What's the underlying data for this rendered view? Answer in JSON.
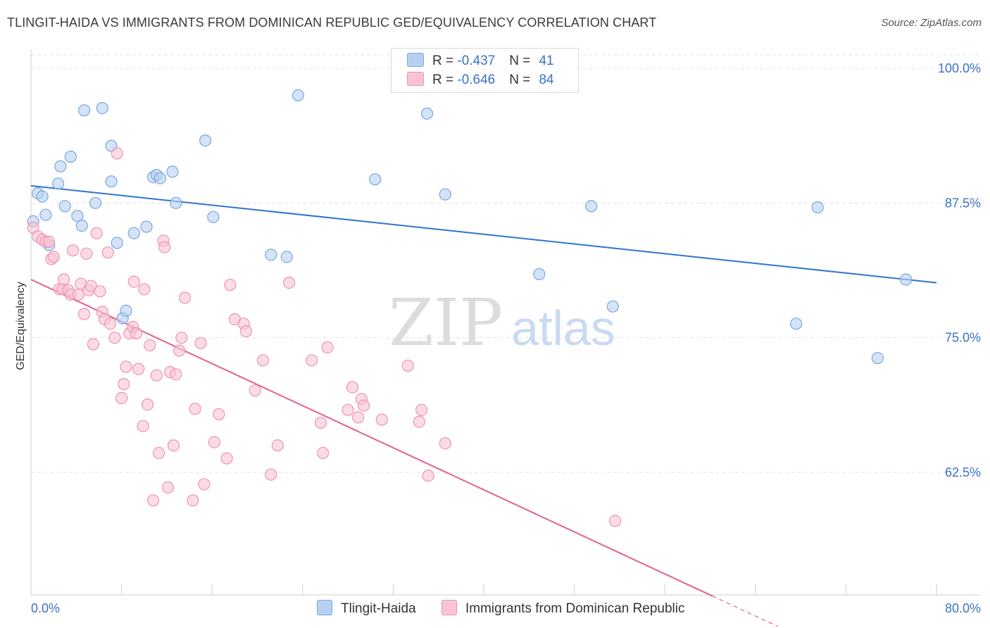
{
  "title": "TLINGIT-HAIDA VS IMMIGRANTS FROM DOMINICAN REPUBLIC GED/EQUIVALENCY CORRELATION CHART",
  "source": "Source: ZipAtlas.com",
  "watermark": {
    "zip": "ZIP",
    "atlas": "atlas"
  },
  "legend": {
    "rows": [
      {
        "r_label": "R = ",
        "r_value": "-0.437",
        "n_label": "N = ",
        "n_value": "41"
      },
      {
        "r_label": "R = ",
        "r_value": "-0.646",
        "n_label": "N = ",
        "n_value": "84"
      }
    ]
  },
  "colors": {
    "blue_fill": "#b7d0f2",
    "blue_stroke": "#7aa6de",
    "blue_line": "#2f74d0",
    "pink_fill": "#f8c4d4",
    "pink_stroke": "#ee93b0",
    "pink_line": "#e0618f",
    "axis_text": "#3b72c8",
    "grid": "#e3e3e3"
  },
  "chart_data": {
    "type": "scatter",
    "xlabel": "",
    "ylabel": "GED/Equivalency",
    "xlim": [
      0,
      80
    ],
    "ylim": [
      50,
      102
    ],
    "x_tick_labels": [
      "0.0%",
      "80.0%"
    ],
    "y_ticks": [
      62.5,
      75.0,
      87.5,
      100.0
    ],
    "y_tick_labels": [
      "62.5%",
      "75.0%",
      "87.5%",
      "100.0%"
    ],
    "grid": true,
    "legend_position": "top-center",
    "series": [
      {
        "name": "Tlingit-Haida",
        "color": "#b7d0f2",
        "R": -0.437,
        "N": 41,
        "trend": {
          "x": [
            0,
            80
          ],
          "y": [
            89.1,
            80.1
          ]
        },
        "points": [
          [
            0.2,
            85.8
          ],
          [
            0.6,
            88.4
          ],
          [
            1.0,
            88.1
          ],
          [
            1.3,
            86.4
          ],
          [
            1.6,
            83.6
          ],
          [
            2.4,
            89.3
          ],
          [
            2.6,
            90.9
          ],
          [
            3.0,
            87.2
          ],
          [
            3.5,
            91.8
          ],
          [
            4.1,
            86.3
          ],
          [
            4.5,
            85.4
          ],
          [
            4.7,
            96.1
          ],
          [
            5.7,
            87.5
          ],
          [
            6.3,
            96.3
          ],
          [
            7.1,
            92.8
          ],
          [
            7.1,
            89.5
          ],
          [
            7.6,
            83.8
          ],
          [
            8.1,
            76.8
          ],
          [
            8.4,
            77.5
          ],
          [
            9.1,
            84.7
          ],
          [
            10.2,
            85.3
          ],
          [
            10.8,
            89.9
          ],
          [
            11.1,
            90.1
          ],
          [
            11.4,
            89.8
          ],
          [
            12.5,
            90.4
          ],
          [
            12.8,
            87.5
          ],
          [
            15.4,
            93.3
          ],
          [
            16.1,
            86.2
          ],
          [
            21.2,
            82.7
          ],
          [
            22.6,
            82.5
          ],
          [
            23.6,
            97.5
          ],
          [
            30.4,
            89.7
          ],
          [
            35.0,
            95.8
          ],
          [
            36.6,
            88.3
          ],
          [
            44.9,
            80.9
          ],
          [
            49.5,
            87.2
          ],
          [
            51.4,
            77.9
          ],
          [
            67.6,
            76.3
          ],
          [
            69.5,
            87.1
          ],
          [
            74.8,
            73.1
          ],
          [
            77.3,
            80.4
          ]
        ]
      },
      {
        "name": "Immigrants from Dominican Republic",
        "color": "#f8c4d4",
        "R": -0.646,
        "N": 84,
        "trend": {
          "x": [
            0,
            66
          ],
          "y": [
            80.4,
            48.2
          ]
        },
        "points": [
          [
            0.2,
            85.2
          ],
          [
            0.6,
            84.4
          ],
          [
            1.0,
            84.1
          ],
          [
            1.3,
            83.9
          ],
          [
            1.8,
            82.3
          ],
          [
            2.0,
            82.5
          ],
          [
            2.5,
            79.5
          ],
          [
            2.8,
            79.5
          ],
          [
            2.9,
            80.4
          ],
          [
            3.3,
            79.4
          ],
          [
            3.5,
            79.0
          ],
          [
            3.7,
            83.1
          ],
          [
            4.2,
            79.0
          ],
          [
            4.4,
            80.0
          ],
          [
            4.7,
            77.2
          ],
          [
            4.9,
            82.8
          ],
          [
            5.1,
            79.4
          ],
          [
            5.3,
            79.8
          ],
          [
            5.5,
            74.4
          ],
          [
            5.8,
            84.7
          ],
          [
            6.1,
            79.3
          ],
          [
            6.3,
            77.4
          ],
          [
            6.5,
            76.7
          ],
          [
            6.8,
            82.9
          ],
          [
            7.0,
            76.3
          ],
          [
            7.4,
            75.0
          ],
          [
            7.6,
            92.1
          ],
          [
            8.0,
            69.4
          ],
          [
            8.2,
            70.7
          ],
          [
            8.4,
            72.3
          ],
          [
            8.7,
            75.4
          ],
          [
            9.0,
            76.0
          ],
          [
            9.1,
            80.2
          ],
          [
            9.3,
            75.4
          ],
          [
            9.5,
            72.1
          ],
          [
            9.9,
            66.8
          ],
          [
            10.0,
            79.5
          ],
          [
            10.3,
            68.8
          ],
          [
            10.5,
            74.3
          ],
          [
            10.8,
            59.9
          ],
          [
            11.1,
            71.5
          ],
          [
            11.3,
            64.3
          ],
          [
            11.7,
            84.0
          ],
          [
            11.8,
            83.4
          ],
          [
            12.1,
            61.1
          ],
          [
            12.3,
            71.8
          ],
          [
            12.6,
            65.0
          ],
          [
            12.8,
            71.6
          ],
          [
            13.1,
            73.8
          ],
          [
            13.3,
            75.0
          ],
          [
            13.6,
            78.7
          ],
          [
            14.3,
            59.9
          ],
          [
            14.5,
            68.4
          ],
          [
            15.0,
            74.5
          ],
          [
            15.3,
            61.4
          ],
          [
            16.2,
            65.3
          ],
          [
            16.6,
            67.9
          ],
          [
            17.3,
            63.8
          ],
          [
            17.6,
            79.9
          ],
          [
            18.0,
            76.7
          ],
          [
            18.8,
            76.3
          ],
          [
            19.0,
            75.6
          ],
          [
            19.8,
            70.1
          ],
          [
            20.5,
            72.9
          ],
          [
            21.2,
            62.3
          ],
          [
            21.8,
            65.0
          ],
          [
            22.8,
            80.1
          ],
          [
            24.8,
            72.9
          ],
          [
            25.6,
            67.1
          ],
          [
            25.8,
            64.3
          ],
          [
            26.2,
            74.1
          ],
          [
            28.0,
            68.3
          ],
          [
            28.4,
            70.4
          ],
          [
            28.9,
            67.6
          ],
          [
            29.2,
            69.3
          ],
          [
            29.4,
            68.7
          ],
          [
            31.0,
            67.4
          ],
          [
            33.3,
            72.4
          ],
          [
            34.3,
            67.2
          ],
          [
            34.5,
            68.3
          ],
          [
            35.1,
            62.2
          ],
          [
            36.6,
            65.2
          ],
          [
            51.6,
            58.0
          ],
          [
            1.6,
            83.9
          ]
        ]
      }
    ]
  }
}
